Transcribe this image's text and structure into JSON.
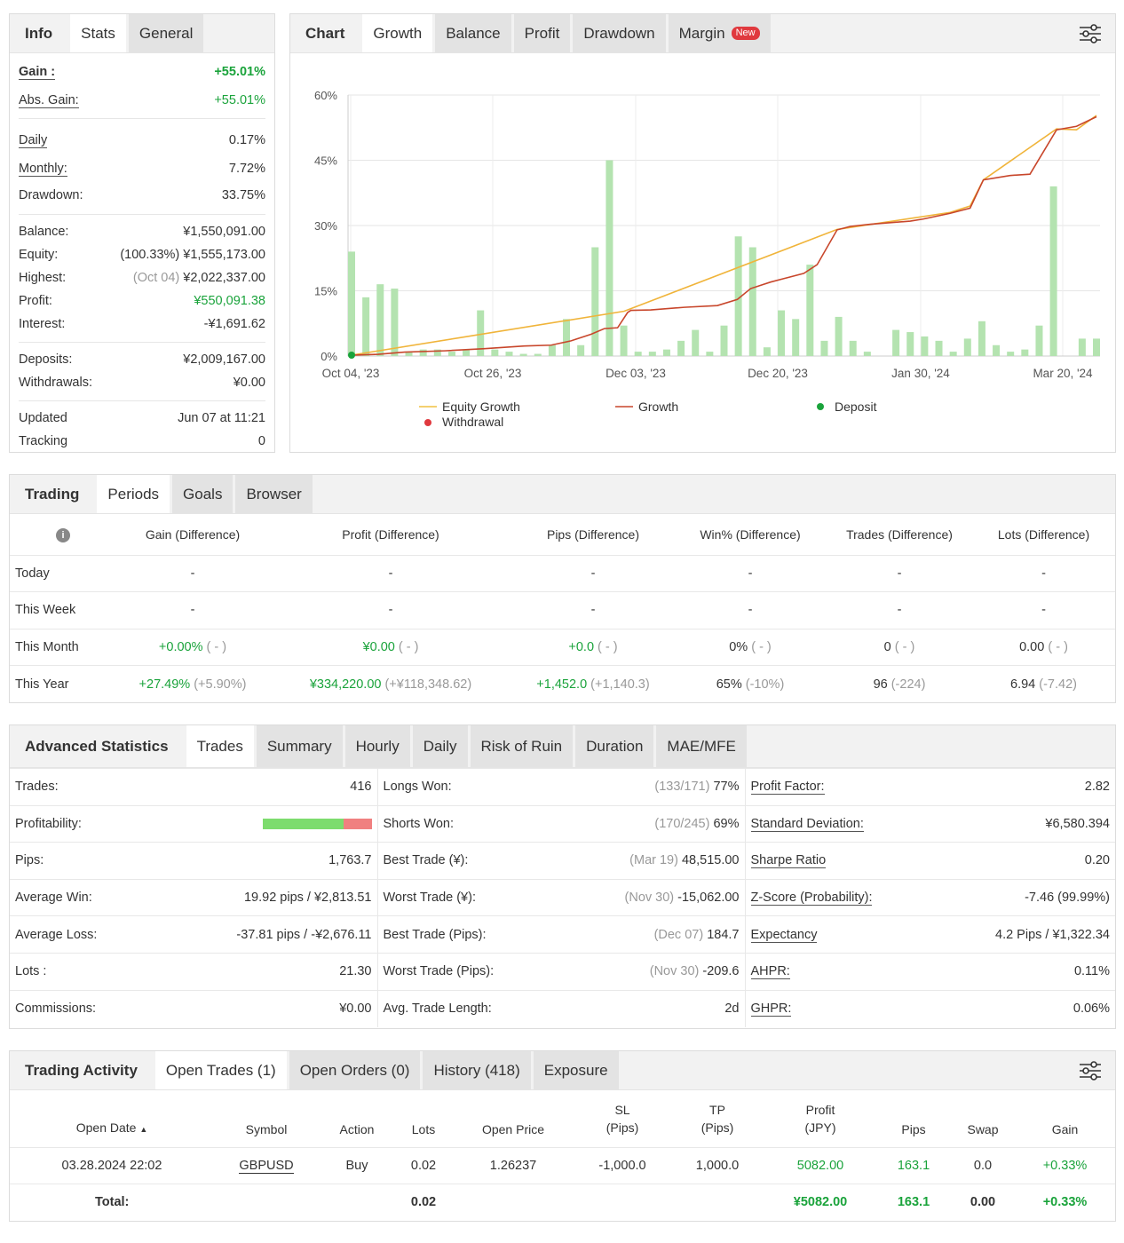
{
  "info_panel": {
    "tabs": [
      "Info",
      "Stats",
      "General"
    ],
    "rows": [
      {
        "label": "Gain :",
        "value": "+55.01%"
      },
      {
        "label": "Abs. Gain:",
        "value": "+55.01%"
      },
      {
        "label": "Daily",
        "value": "0.17%"
      },
      {
        "label": "Monthly:",
        "value": "7.72%"
      },
      {
        "label": "Drawdown:",
        "value": "33.75%"
      },
      {
        "label": "Balance:",
        "value": "¥1,550,091.00"
      },
      {
        "label": "Equity:",
        "note": "(100.33%)",
        "value": "¥1,555,173.00"
      },
      {
        "label": "Highest:",
        "note": "(Oct 04)",
        "value": "¥2,022,337.00"
      },
      {
        "label": "Profit:",
        "value": "¥550,091.38"
      },
      {
        "label": "Interest:",
        "value": "-¥1,691.62"
      },
      {
        "label": "Deposits:",
        "value": "¥2,009,167.00"
      },
      {
        "label": "Withdrawals:",
        "value": "¥0.00"
      },
      {
        "label": "Updated",
        "value": "Jun 07 at 11:21"
      },
      {
        "label": "Tracking",
        "value": "0"
      }
    ]
  },
  "chart_panel": {
    "tabs": [
      "Chart",
      "Growth",
      "Balance",
      "Profit",
      "Drawdown",
      "Margin"
    ],
    "new_badge": "New",
    "legend": [
      "Equity Growth",
      "Growth",
      "Deposit",
      "Withdrawal"
    ],
    "settings_icon": "sliders-icon"
  },
  "chart_data": {
    "type": "line",
    "ylim": [
      0,
      60
    ],
    "yticks": [
      "60%",
      "45%",
      "30%",
      "15%",
      "0%"
    ],
    "xticks": [
      "Oct 04, '23",
      "Oct 26, '23",
      "Dec 03, '23",
      "Dec 20, '23",
      "Jan 30, '24",
      "Mar 20, '24"
    ],
    "bars": [
      24,
      13.5,
      16.5,
      15.5,
      1,
      1.5,
      1.5,
      1,
      1.5,
      10.5,
      1.5,
      1,
      0.5,
      0.5,
      2.5,
      8.5,
      2.5,
      25,
      45,
      7,
      1,
      1,
      1.5,
      3.5,
      6,
      1,
      7,
      27.5,
      25,
      2,
      10.5,
      8.5,
      21,
      3.5,
      9,
      3.5,
      1,
      0,
      6,
      5.5,
      4.5,
      3.5,
      1,
      4,
      8,
      2.5,
      1,
      1.5,
      7,
      39,
      0,
      4,
      4
    ],
    "series": [
      {
        "name": "Growth",
        "color": "#c8462b",
        "points": [
          [
            0,
            0.2
          ],
          [
            0.04,
            0.4
          ],
          [
            0.08,
            0.9
          ],
          [
            0.14,
            1.2
          ],
          [
            0.2,
            1.7
          ],
          [
            0.26,
            2.3
          ],
          [
            0.3,
            2.5
          ],
          [
            0.33,
            3.5
          ],
          [
            0.36,
            5
          ],
          [
            0.38,
            6.3
          ],
          [
            0.4,
            6.5
          ],
          [
            0.415,
            10
          ],
          [
            0.42,
            10.5
          ],
          [
            0.45,
            10.6
          ],
          [
            0.5,
            11.2
          ],
          [
            0.55,
            11.6
          ],
          [
            0.58,
            13
          ],
          [
            0.6,
            15.5
          ],
          [
            0.63,
            17
          ],
          [
            0.65,
            17.8
          ],
          [
            0.68,
            19
          ],
          [
            0.7,
            21
          ],
          [
            0.73,
            29
          ],
          [
            0.75,
            29.8
          ],
          [
            0.78,
            30.3
          ],
          [
            0.84,
            31
          ],
          [
            0.86,
            31.5
          ],
          [
            0.9,
            32.8
          ],
          [
            0.92,
            33.6
          ],
          [
            0.93,
            34
          ],
          [
            0.95,
            40.5
          ],
          [
            0.99,
            41.5
          ],
          [
            1.02,
            41.8
          ],
          [
            1.06,
            52
          ],
          [
            1.09,
            52.8
          ],
          [
            1.12,
            55
          ]
        ]
      },
      {
        "name": "Equity Growth",
        "color": "#f0b43a",
        "points": [
          [
            0,
            0.2
          ],
          [
            0.41,
            10.3
          ],
          [
            0.73,
            29.1
          ],
          [
            0.9,
            33
          ],
          [
            0.93,
            34.5
          ],
          [
            0.95,
            40.5
          ],
          [
            1.06,
            52.2
          ],
          [
            1.09,
            52
          ],
          [
            1.12,
            55.3
          ]
        ]
      }
    ],
    "deposit": {
      "x": "Oct 04, '23",
      "value": 0
    }
  },
  "periods_panel": {
    "tabs": [
      "Trading",
      "Periods",
      "Goals",
      "Browser"
    ],
    "info_icon": "info-icon",
    "headers": [
      "Gain (Difference)",
      "Profit (Difference)",
      "Pips (Difference)",
      "Win% (Difference)",
      "Trades (Difference)",
      "Lots (Difference)"
    ],
    "rows": [
      {
        "label": "Today",
        "cells": [
          [
            "-",
            ""
          ],
          [
            "-",
            ""
          ],
          [
            "-",
            ""
          ],
          [
            "-",
            ""
          ],
          [
            "-",
            ""
          ],
          [
            "-",
            ""
          ]
        ]
      },
      {
        "label": "This Week",
        "cells": [
          [
            "-",
            ""
          ],
          [
            "-",
            ""
          ],
          [
            "-",
            ""
          ],
          [
            "-",
            ""
          ],
          [
            "-",
            ""
          ],
          [
            "-",
            ""
          ]
        ]
      },
      {
        "label": "This Month",
        "cells": [
          [
            "+0.00%",
            " ( - )"
          ],
          [
            "¥0.00",
            " ( - )"
          ],
          [
            "+0.0",
            " ( - )"
          ],
          [
            "0%",
            " ( - )"
          ],
          [
            "0",
            " ( - )"
          ],
          [
            "0.00",
            " ( - )"
          ]
        ]
      },
      {
        "label": "This Year",
        "cells": [
          [
            "+27.49%",
            " (+5.90%)"
          ],
          [
            "¥334,220.00",
            " (+¥118,348.62)"
          ],
          [
            "+1,452.0",
            " (+1,140.3)"
          ],
          [
            "65%",
            " (-10%)"
          ],
          [
            "96",
            " (-224)"
          ],
          [
            "6.94",
            " (-7.42)"
          ]
        ]
      }
    ]
  },
  "advanced_panel": {
    "tabs": [
      "Advanced Statistics",
      "Trades",
      "Summary",
      "Hourly",
      "Daily",
      "Risk of Ruin",
      "Duration",
      "MAE/MFE"
    ],
    "rows": [
      {
        "l1": "Trades:",
        "v1": "416",
        "l2": "Longs Won:",
        "n2": "(133/171)",
        "v2": "77%",
        "l3": "Profit Factor:",
        "v3": "2.82"
      },
      {
        "l1": "Profitability:",
        "v1": "",
        "l2": "Shorts Won:",
        "n2": "(170/245)",
        "v2": "69%",
        "l3": "Standard Deviation:",
        "v3": "¥6,580.394"
      },
      {
        "l1": "Pips:",
        "v1": "1,763.7",
        "l2": "Best Trade (¥):",
        "n2": "(Mar 19)",
        "v2": "48,515.00",
        "l3": "Sharpe Ratio",
        "v3": "0.20"
      },
      {
        "l1": "Average Win:",
        "v1": "19.92 pips / ¥2,813.51",
        "l2": "Worst Trade (¥):",
        "n2": "(Nov 30)",
        "v2": "-15,062.00",
        "l3": "Z-Score (Probability):",
        "v3": "-7.46 (99.99%)"
      },
      {
        "l1": "Average Loss:",
        "v1": "-37.81 pips / -¥2,676.11",
        "l2": "Best Trade (Pips):",
        "n2": "(Dec 07)",
        "v2": "184.7",
        "l3": "Expectancy",
        "v3": "4.2 Pips / ¥1,322.34"
      },
      {
        "l1": "Lots :",
        "v1": "21.30",
        "l2": "Worst Trade (Pips):",
        "n2": "(Nov 30)",
        "v2": "-209.6",
        "l3": "AHPR:",
        "v3": "0.11%"
      },
      {
        "l1": "Commissions:",
        "v1": "¥0.00",
        "l2": "Avg. Trade Length:",
        "n2": "",
        "v2": "2d",
        "l3": "GHPR:",
        "v3": "0.06%"
      }
    ],
    "profitability_win_fraction": 0.74
  },
  "activity_panel": {
    "tabs": [
      "Trading Activity",
      "Open Trades (1)",
      "Open Orders (0)",
      "History (418)",
      "Exposure"
    ],
    "headers": {
      "open_date": "Open Date",
      "sort_arrow": "▲",
      "symbol": "Symbol",
      "action": "Action",
      "lots": "Lots",
      "open_price": "Open Price",
      "sl_1": "SL",
      "sl_2": "(Pips)",
      "tp_1": "TP",
      "tp_2": "(Pips)",
      "profit_1": "Profit",
      "profit_2": "(JPY)",
      "pips": "Pips",
      "swap": "Swap",
      "gain": "Gain"
    },
    "trade": {
      "date": "03.28.2024 22:02",
      "symbol": "GBPUSD",
      "action": "Buy",
      "lots": "0.02",
      "price": "1.26237",
      "sl": "-1,000.0",
      "tp": "1,000.0",
      "profit": "5082.00",
      "pips": "163.1",
      "swap": "0.0",
      "gain": "+0.33%"
    },
    "total": {
      "label": "Total:",
      "lots": "0.02",
      "profit": "¥5082.00",
      "pips": "163.1",
      "swap": "0.00",
      "gain": "+0.33%"
    }
  }
}
